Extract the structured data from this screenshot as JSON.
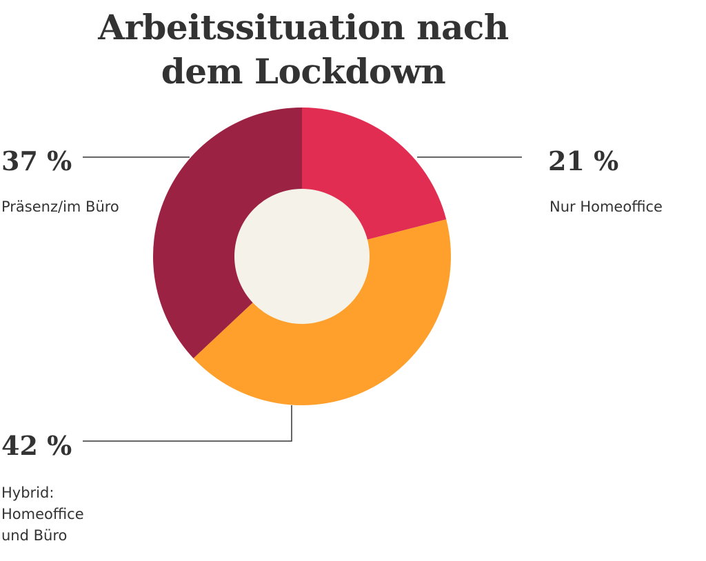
{
  "chart_data": {
    "type": "pie",
    "title": [
      "Arbeitssituation nach",
      "dem Lockdown"
    ],
    "slices": [
      {
        "value": 21,
        "label": "21 %",
        "category": [
          "Nur Homeoffice"
        ],
        "color": "#e22d52"
      },
      {
        "value": 42,
        "label": "42 %",
        "category": [
          "Hybrid:",
          "Homeoffice",
          "und Büro"
        ],
        "color": "#fea02b"
      },
      {
        "value": 37,
        "label": "37 %",
        "category": [
          "Präsenz/im Büro"
        ],
        "color": "#9b2242"
      }
    ],
    "center_color": "#f4f2e9",
    "leader_color": "#333333"
  }
}
